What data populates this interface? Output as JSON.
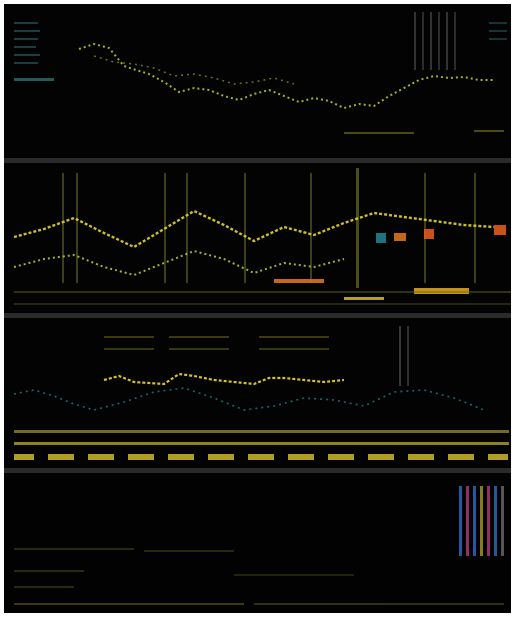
{
  "image": {
    "panel_count": 4,
    "panels": [
      {
        "id": "panel-1",
        "palette": [
          "#c8c832",
          "#9bbf2a",
          "#3aa6a0"
        ]
      },
      {
        "id": "panel-2",
        "palette": [
          "#d6c82a",
          "#b9d23a",
          "#d8741e",
          "#2fa3b5"
        ]
      },
      {
        "id": "panel-3",
        "palette": [
          "#e1cc2b",
          "#b7c93a",
          "#2ba6b0"
        ]
      },
      {
        "id": "panel-4",
        "palette": [
          "#a89a24",
          "#6b6b18",
          "#b33b7a",
          "#2b6ec9"
        ]
      }
    ],
    "background": "#020202",
    "divider_color": "#2a2a2a"
  }
}
